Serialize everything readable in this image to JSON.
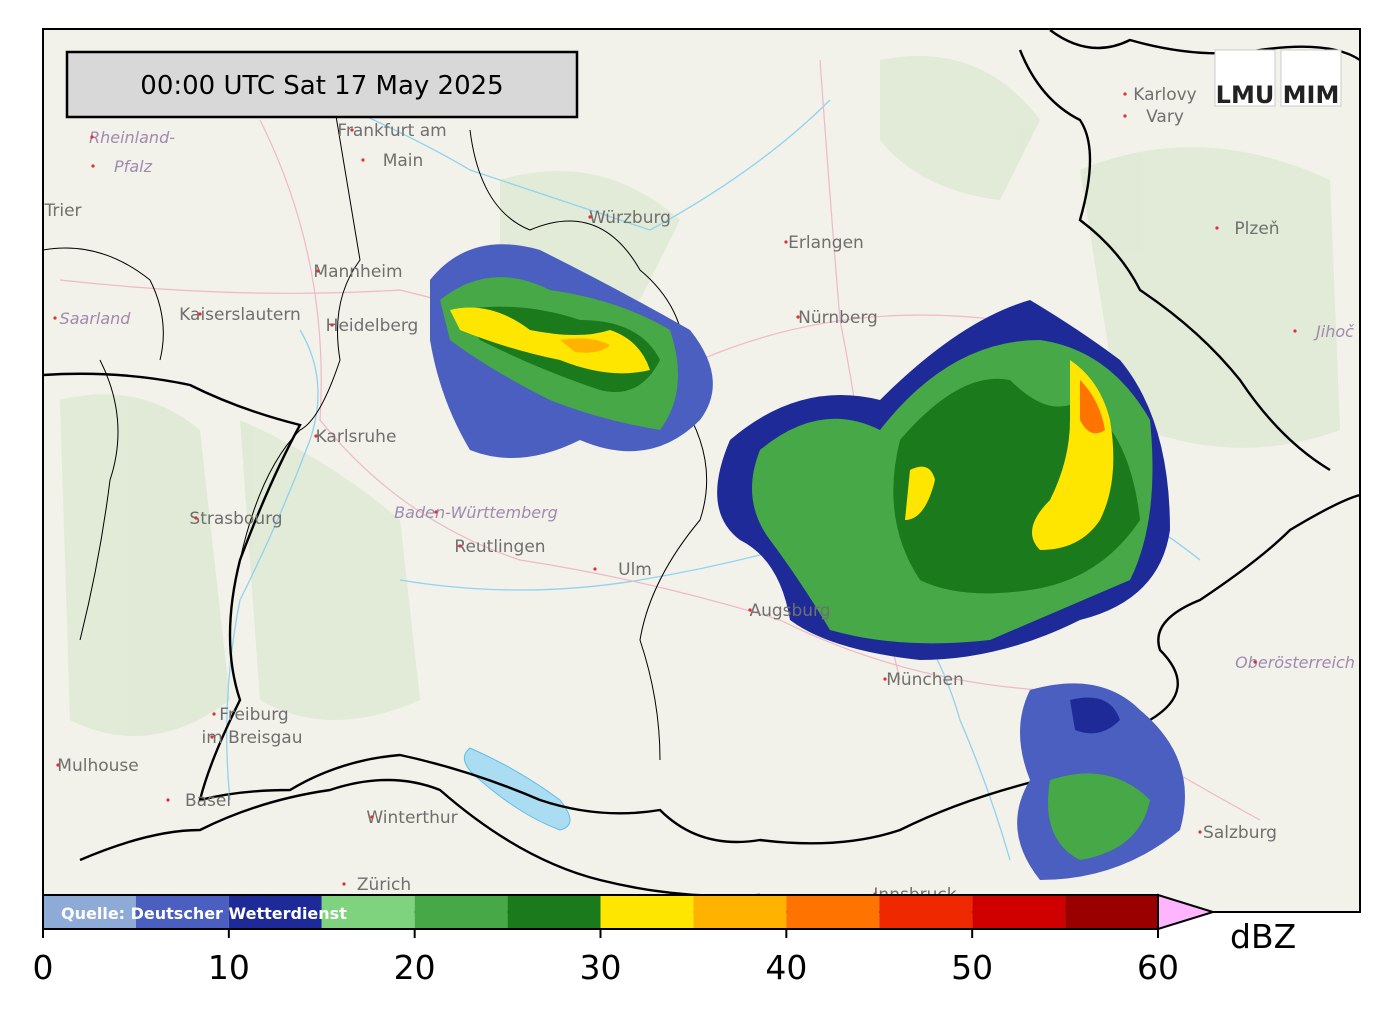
{
  "timestamp": "00:00 UTC  Sat 17 May 2025",
  "logos": [
    "LMU",
    "MIM"
  ],
  "places": [
    "Frankfurt am",
    "Main",
    "Mannheim",
    "Heidelberg",
    "Kaiserslautern",
    "Saarland",
    "Rheinland-",
    "Pfalz",
    "Trier",
    "Karlsruhe",
    "Strasbourg",
    "Baden-Württemberg",
    "Reutlingen",
    "Ulm",
    "Augsburg",
    "München",
    "Freiburg",
    "im Breisgau",
    "Mulhouse",
    "Basel",
    "Winterthur",
    "Zürich",
    "Würzburg",
    "Erlangen",
    "Nürnberg",
    "Karlovy",
    "Vary",
    "Plzeň",
    "Jihoč",
    "Oberösterreich",
    "Salzburg",
    "Innsbruck"
  ],
  "colorbar": {
    "source": "Quelle: Deutscher Wetterdienst",
    "unit": "dBZ",
    "bounds": [
      0,
      5,
      10,
      15,
      20,
      25,
      30,
      35,
      40,
      45,
      50,
      55,
      60
    ],
    "colors": [
      "#8eaad6",
      "#4a5fc0",
      "#1f2a99",
      "#7fd37f",
      "#46a846",
      "#1b7a1b",
      "#ffe600",
      "#ffb300",
      "#ff7300",
      "#f02800",
      "#d00000",
      "#9a0000"
    ],
    "over_color": "#ffb4ff",
    "ticks": [
      0,
      10,
      20,
      30,
      40,
      50,
      60
    ]
  }
}
